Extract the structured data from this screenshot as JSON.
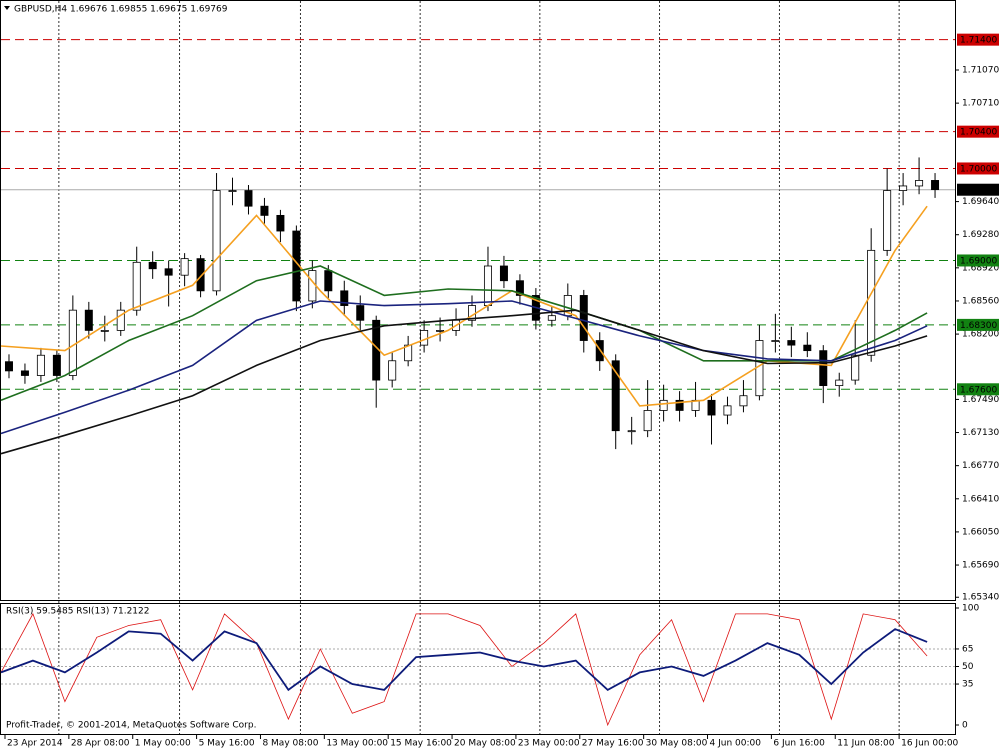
{
  "chart_data": [
    {
      "type": "candlestick",
      "title": "GBPUSD,H4  1.69676 1.69855 1.69675 1.69769",
      "x": [
        2,
        6,
        10,
        14,
        18,
        22,
        26,
        30,
        34,
        38,
        42,
        46,
        50,
        54,
        58,
        62,
        66,
        70,
        74,
        78,
        82,
        86,
        90,
        94,
        98,
        102,
        106,
        110,
        114,
        118,
        122,
        126,
        130,
        134,
        138,
        142,
        146,
        150,
        154,
        158,
        162,
        166,
        170,
        174,
        178,
        182,
        186,
        190,
        194,
        198,
        202,
        206,
        210,
        214,
        218,
        222,
        226,
        230,
        234
      ],
      "open": [
        1.679,
        1.678,
        1.6775,
        1.6797,
        1.6775,
        1.6846,
        1.6824,
        1.6824,
        1.6846,
        1.6898,
        1.6891,
        1.6884,
        1.6902,
        1.6867,
        1.6976,
        1.6976,
        1.6959,
        1.6949,
        1.6932,
        1.6856,
        1.6889,
        1.6867,
        1.6851,
        1.6835,
        1.677,
        1.6791,
        1.6808,
        1.6824,
        1.6824,
        1.6835,
        1.6851,
        1.6894,
        1.6878,
        1.6862,
        1.6835,
        1.684,
        1.6862,
        1.6813,
        1.6791,
        1.6715,
        1.6715,
        1.6737,
        1.6748,
        1.6737,
        1.6748,
        1.6732,
        1.6742,
        1.6753,
        1.6813,
        1.6813,
        1.6808,
        1.6802,
        1.6764,
        1.677,
        1.6797,
        1.6911,
        1.6976,
        1.6981,
        1.6987
      ],
      "high": [
        1.6798,
        1.6788,
        1.6805,
        1.6803,
        1.6862,
        1.6855,
        1.684,
        1.6855,
        1.6915,
        1.691,
        1.69,
        1.6908,
        1.6906,
        1.6995,
        1.699,
        1.6982,
        1.6968,
        1.6955,
        1.6938,
        1.69,
        1.6895,
        1.6878,
        1.6862,
        1.684,
        1.68,
        1.6818,
        1.6835,
        1.6838,
        1.6848,
        1.6862,
        1.6915,
        1.6905,
        1.6885,
        1.687,
        1.685,
        1.6875,
        1.6868,
        1.6822,
        1.6798,
        1.673,
        1.677,
        1.6765,
        1.6758,
        1.6768,
        1.6755,
        1.6752,
        1.677,
        1.683,
        1.6842,
        1.6828,
        1.6822,
        1.6808,
        1.6778,
        1.6835,
        1.6935,
        1.7,
        1.6995,
        1.7012,
        1.6995
      ],
      "low": [
        1.6772,
        1.6766,
        1.6768,
        1.6768,
        1.677,
        1.6815,
        1.6812,
        1.6818,
        1.684,
        1.688,
        1.685,
        1.6872,
        1.686,
        1.6862,
        1.696,
        1.695,
        1.694,
        1.692,
        1.6845,
        1.6848,
        1.6858,
        1.684,
        1.6822,
        1.674,
        1.6762,
        1.6785,
        1.68,
        1.6812,
        1.6818,
        1.6828,
        1.6845,
        1.687,
        1.6852,
        1.6825,
        1.6828,
        1.6835,
        1.68,
        1.678,
        1.6695,
        1.67,
        1.6708,
        1.6725,
        1.6725,
        1.673,
        1.67,
        1.6722,
        1.6735,
        1.6748,
        1.68,
        1.6795,
        1.6795,
        1.6745,
        1.6752,
        1.6765,
        1.679,
        1.6905,
        1.696,
        1.6972,
        1.6968
      ],
      "close": [
        1.678,
        1.6775,
        1.6797,
        1.6775,
        1.6846,
        1.6824,
        1.6824,
        1.6846,
        1.6898,
        1.6891,
        1.6884,
        1.6902,
        1.6867,
        1.6976,
        1.6976,
        1.6959,
        1.6949,
        1.6932,
        1.6856,
        1.6889,
        1.6867,
        1.6851,
        1.6835,
        1.677,
        1.6791,
        1.6808,
        1.6824,
        1.6824,
        1.6835,
        1.6851,
        1.6894,
        1.6878,
        1.6862,
        1.6835,
        1.684,
        1.6862,
        1.6813,
        1.6791,
        1.6715,
        1.6715,
        1.6737,
        1.6748,
        1.6737,
        1.6748,
        1.6732,
        1.6742,
        1.6753,
        1.6813,
        1.6813,
        1.6808,
        1.6802,
        1.6764,
        1.677,
        1.6797,
        1.6911,
        1.6976,
        1.6981,
        1.6987,
        1.6977
      ],
      "lines": [
        {
          "color": "#f5a020",
          "x": [
            0,
            16,
            32,
            48,
            64,
            80,
            96,
            112,
            128,
            144,
            160,
            176,
            192,
            208,
            224,
            232
          ],
          "values": [
            1.6807,
            1.6802,
            1.6846,
            1.6873,
            1.6949,
            1.6867,
            1.6797,
            1.6824,
            1.6867,
            1.684,
            1.6742,
            1.6748,
            1.6791,
            1.6786,
            1.6911,
            1.6959
          ]
        },
        {
          "color": "#1e6e1e",
          "x": [
            0,
            16,
            32,
            48,
            64,
            80,
            96,
            112,
            128,
            144,
            160,
            176,
            192,
            208,
            224,
            232
          ],
          "values": [
            1.6748,
            1.6775,
            1.6813,
            1.684,
            1.6878,
            1.6894,
            1.6862,
            1.6869,
            1.6867,
            1.6846,
            1.6824,
            1.6791,
            1.6791,
            1.6791,
            1.6824,
            1.6843
          ]
        },
        {
          "color": "#1a237e",
          "x": [
            0,
            16,
            32,
            48,
            64,
            80,
            96,
            112,
            128,
            144,
            160,
            176,
            192,
            208,
            224,
            232
          ],
          "values": [
            1.6712,
            1.6735,
            1.6759,
            1.6786,
            1.6835,
            1.6856,
            1.6851,
            1.6853,
            1.6856,
            1.6837,
            1.6818,
            1.6802,
            1.6793,
            1.6791,
            1.6813,
            1.6829
          ]
        },
        {
          "color": "#111111",
          "x": [
            0,
            16,
            32,
            48,
            64,
            80,
            96,
            112,
            128,
            144,
            160,
            176,
            192,
            208,
            224,
            232
          ],
          "values": [
            1.669,
            1.671,
            1.6731,
            1.6753,
            1.6786,
            1.6813,
            1.6829,
            1.6835,
            1.684,
            1.6846,
            1.6824,
            1.6802,
            1.6788,
            1.6789,
            1.6807,
            1.6818
          ]
        }
      ],
      "levels": [
        {
          "value": 1.714,
          "label": "1.71400",
          "color": "#cc0000"
        },
        {
          "value": 1.704,
          "label": "1.70400",
          "color": "#cc0000"
        },
        {
          "value": 1.7,
          "label": "1.70000",
          "color": "#cc0000"
        },
        {
          "value": 1.69,
          "label": "1.69000",
          "color": "#128212"
        },
        {
          "value": 1.683,
          "label": "1.68300",
          "color": "#128212"
        },
        {
          "value": 1.676,
          "label": "1.67600",
          "color": "#128212"
        }
      ],
      "last": {
        "value": 1.69769,
        "label": "1.69769"
      },
      "xlim": [
        0,
        239
      ],
      "ylim": [
        1.6531,
        1.7182
      ],
      "yticks": [
        {
          "value": 1.7107,
          "label": "1.71070"
        },
        {
          "value": 1.7071,
          "label": "1.70710"
        },
        {
          "value": 1.6964,
          "label": "1.69640"
        },
        {
          "value": 1.6928,
          "label": "1.69280"
        },
        {
          "value": 1.6892,
          "label": "1.68920"
        },
        {
          "value": 1.6856,
          "label": "1.68560"
        },
        {
          "value": 1.682,
          "label": "1.68200"
        },
        {
          "value": 1.6749,
          "label": "1.67490"
        },
        {
          "value": 1.6713,
          "label": "1.67130"
        },
        {
          "value": 1.6677,
          "label": "1.66770"
        },
        {
          "value": 1.6641,
          "label": "1.66410"
        },
        {
          "value": 1.6605,
          "label": "1.66050"
        },
        {
          "value": 1.6569,
          "label": "1.65690"
        },
        {
          "value": 1.6534,
          "label": "1.65340"
        }
      ],
      "xticks": [
        {
          "value": 1,
          "label": "23 Apr 2014"
        },
        {
          "value": 17,
          "label": "28 Apr 08:00"
        },
        {
          "value": 33,
          "label": "1 May 00:00"
        },
        {
          "value": 49,
          "label": "5 May 16:00"
        },
        {
          "value": 65,
          "label": "8 May 08:00"
        },
        {
          "value": 81,
          "label": "13 May 00:00"
        },
        {
          "value": 97,
          "label": "15 May 16:00"
        },
        {
          "value": 113,
          "label": "20 May 08:00"
        },
        {
          "value": 129,
          "label": "23 May 00:00"
        },
        {
          "value": 145,
          "label": "27 May 16:00"
        },
        {
          "value": 161,
          "label": "30 May 08:00"
        },
        {
          "value": 177,
          "label": "4 Jun 00:00"
        },
        {
          "value": 193,
          "label": "6 Jun 16:00"
        },
        {
          "value": 209,
          "label": "11 Jun 08:00"
        },
        {
          "value": 225,
          "label": "16 Jun 00:00"
        }
      ],
      "xgrid": [
        14.5,
        44.75,
        75,
        105,
        135,
        165,
        195,
        225
      ]
    },
    {
      "type": "line",
      "title": "RSI(3) 59.5485 RSI(13) 71.2122",
      "series": [
        {
          "color": "#dd1111",
          "x": [
            0,
            8,
            16,
            24,
            32,
            40,
            48,
            56,
            64,
            72,
            80,
            88,
            96,
            104,
            112,
            120,
            128,
            136,
            144,
            152,
            160,
            168,
            176,
            184,
            192,
            200,
            208,
            216,
            224,
            232
          ],
          "values": [
            45,
            95,
            20,
            75,
            85,
            90,
            30,
            95,
            70,
            5,
            65,
            10,
            20,
            95,
            95,
            85,
            50,
            70,
            95,
            0,
            60,
            90,
            20,
            95,
            95,
            90,
            5,
            95,
            90,
            59
          ]
        },
        {
          "color": "#0d1b7a",
          "x": [
            0,
            8,
            16,
            24,
            32,
            40,
            48,
            56,
            64,
            72,
            80,
            88,
            96,
            104,
            112,
            120,
            128,
            136,
            144,
            152,
            160,
            168,
            176,
            184,
            192,
            200,
            208,
            216,
            224,
            232
          ],
          "values": [
            45,
            55,
            45,
            62,
            80,
            78,
            55,
            80,
            70,
            30,
            50,
            35,
            30,
            58,
            60,
            62,
            55,
            50,
            55,
            30,
            45,
            50,
            42,
            55,
            70,
            60,
            35,
            62,
            82,
            71
          ]
        }
      ],
      "ylim": [
        0,
        100
      ],
      "yticks": [
        0,
        35,
        50,
        65,
        100
      ],
      "levels": [
        35,
        50,
        65
      ]
    }
  ],
  "footer": "Profit-Trader, © 2001-2014, MetaQuotes Software Corp."
}
